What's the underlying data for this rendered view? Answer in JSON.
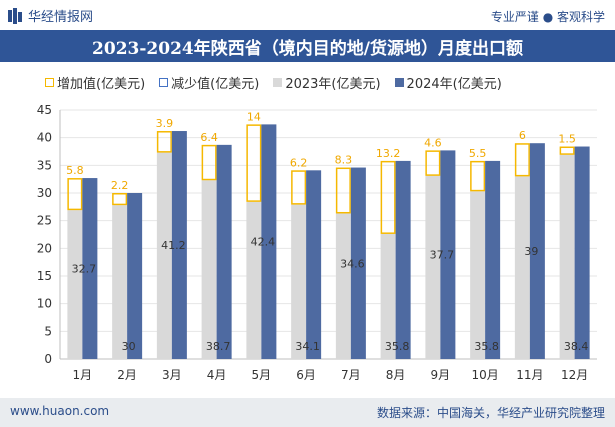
{
  "header": {
    "brand": "华经情报网",
    "tagline": "专业严谨 ● 客观科学"
  },
  "chart_data": {
    "type": "bar",
    "title": "2023-2024年陕西省（境内目的地/货源地）月度出口额",
    "categories": [
      "1月",
      "2月",
      "3月",
      "4月",
      "5月",
      "6月",
      "7月",
      "8月",
      "9月",
      "10月",
      "11月",
      "12月"
    ],
    "series": [
      {
        "name": "增加值(亿美元)",
        "values": [
          5.8,
          2.2,
          3.9,
          6.4,
          14,
          6.2,
          8.3,
          13.2,
          4.6,
          5.5,
          6,
          1.5
        ]
      },
      {
        "name": "减少值(亿美元)",
        "values": [
          0,
          0,
          0,
          0,
          0,
          0,
          0,
          0,
          0,
          0,
          0,
          0
        ]
      },
      {
        "name": "2023年(亿美元)",
        "values": [
          26.9,
          27.8,
          37.3,
          32.3,
          28.4,
          27.9,
          26.3,
          22.6,
          33.1,
          30.3,
          33.0,
          36.9
        ]
      },
      {
        "name": "2024年(亿美元)",
        "values": [
          32.7,
          30,
          41.2,
          38.7,
          42.4,
          34.1,
          34.6,
          35.8,
          37.7,
          35.8,
          39,
          38.4
        ]
      }
    ],
    "ylim": [
      0,
      45
    ],
    "yticks": [
      0,
      5,
      10,
      15,
      20,
      25,
      30,
      35,
      40,
      45
    ],
    "colors": {
      "increase": "#f5b800",
      "decrease": "#4472c4",
      "y2023": "#d9d9d9",
      "y2024": "#4e6aa1",
      "label_increase": "#f0a800",
      "label_value": "#333333"
    }
  },
  "footer": {
    "website": "www.huaon.com",
    "source": "数据来源：中国海关，华经产业研究院整理"
  }
}
